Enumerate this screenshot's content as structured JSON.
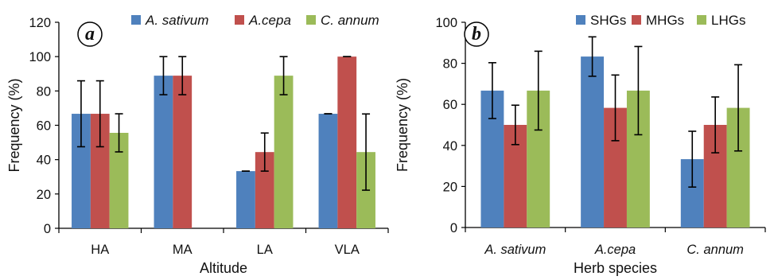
{
  "chart_data": [
    {
      "type": "bar",
      "panel_label": "a",
      "xlabel": "Altitude",
      "ylabel": "Frequency (%)",
      "ylim": [
        0,
        120
      ],
      "yticks": [
        "0",
        "20",
        "40",
        "60",
        "80",
        "100",
        "120"
      ],
      "categories": [
        "HA",
        "MA",
        "LA",
        "VLA"
      ],
      "category_style": "normal",
      "legend_position": "top-right",
      "legend_style": "italic",
      "series": [
        {
          "name": "A. sativum",
          "color": "#4F81BD",
          "values": [
            66.7,
            88.9,
            33.3,
            66.7
          ],
          "errors": [
            19.2,
            11.1,
            0,
            0
          ]
        },
        {
          "name": "A.cepa",
          "color": "#C0504D",
          "values": [
            66.7,
            88.9,
            44.4,
            100
          ],
          "errors": [
            19.2,
            11.1,
            11.1,
            0
          ]
        },
        {
          "name": "C. annum",
          "color": "#9BBB59",
          "values": [
            55.6,
            0,
            88.9,
            44.4
          ],
          "errors": [
            11.1,
            0,
            11.1,
            22.2
          ]
        }
      ]
    },
    {
      "type": "bar",
      "panel_label": "b",
      "xlabel": "Herb species",
      "ylabel": "Frequency (%)",
      "ylim": [
        0,
        100
      ],
      "yticks": [
        "0",
        "20",
        "40",
        "60",
        "80",
        "100"
      ],
      "categories": [
        "A. sativum",
        "A.cepa",
        "C. annum"
      ],
      "category_style": "italic",
      "legend_position": "top-right",
      "legend_style": "normal",
      "series": [
        {
          "name": "SHGs",
          "color": "#4F81BD",
          "values": [
            66.7,
            83.3,
            33.3
          ],
          "errors": [
            13.6,
            9.6,
            13.6
          ]
        },
        {
          "name": "MHGs",
          "color": "#C0504D",
          "values": [
            50,
            58.3,
            50
          ],
          "errors": [
            9.6,
            16,
            13.6
          ]
        },
        {
          "name": "LHGs",
          "color": "#9BBB59",
          "values": [
            66.7,
            66.7,
            58.3
          ],
          "errors": [
            19.2,
            21.5,
            21
          ]
        }
      ]
    }
  ]
}
